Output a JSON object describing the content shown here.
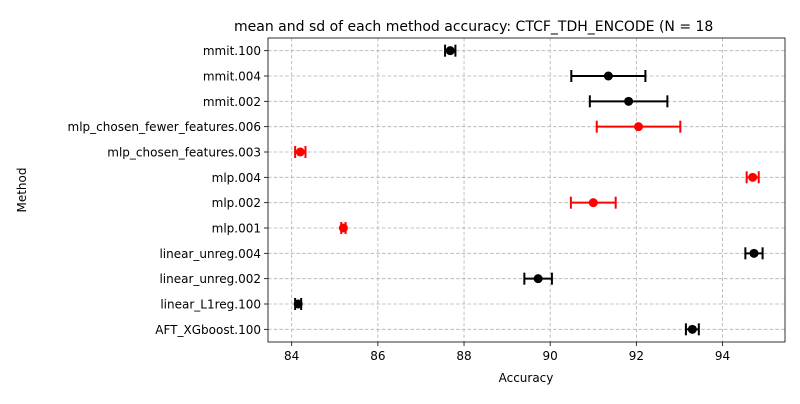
{
  "chart_data": {
    "type": "errorbar",
    "title": "mean and sd of each method accuracy: CTCF_TDH_ENCODE (N = 18",
    "xlabel": "Accuracy",
    "ylabel": "Method",
    "xlim": [
      83.45,
      95.45
    ],
    "xticks": [
      84,
      86,
      88,
      90,
      92,
      94
    ],
    "grid": true,
    "categories": [
      "AFT_XGboost.100",
      "linear_L1reg.100",
      "linear_unreg.002",
      "linear_unreg.004",
      "mlp.001",
      "mlp.002",
      "mlp.004",
      "mlp_chosen_features.003",
      "mlp_chosen_fewer_features.006",
      "mmit.002",
      "mmit.004",
      "mmit.100"
    ],
    "points": [
      {
        "method": "AFT_XGboost.100",
        "mean": 93.3,
        "sd": 0.15,
        "color": "#000000"
      },
      {
        "method": "linear_L1reg.100",
        "mean": 84.15,
        "sd": 0.07,
        "color": "#000000"
      },
      {
        "method": "linear_unreg.002",
        "mean": 89.72,
        "sd": 0.32,
        "color": "#000000"
      },
      {
        "method": "linear_unreg.004",
        "mean": 94.73,
        "sd": 0.2,
        "color": "#000000"
      },
      {
        "method": "mlp.001",
        "mean": 85.2,
        "sd": 0.05,
        "color": "#ff0000"
      },
      {
        "method": "mlp.002",
        "mean": 91.0,
        "sd": 0.52,
        "color": "#ff0000"
      },
      {
        "method": "mlp.004",
        "mean": 94.7,
        "sd": 0.14,
        "color": "#ff0000"
      },
      {
        "method": "mlp_chosen_features.003",
        "mean": 84.2,
        "sd": 0.12,
        "color": "#ff0000"
      },
      {
        "method": "mlp_chosen_fewer_features.006",
        "mean": 92.05,
        "sd": 0.97,
        "color": "#ff0000"
      },
      {
        "method": "mmit.002",
        "mean": 91.82,
        "sd": 0.9,
        "color": "#000000"
      },
      {
        "method": "mmit.004",
        "mean": 91.35,
        "sd": 0.86,
        "color": "#000000"
      },
      {
        "method": "mmit.100",
        "mean": 87.68,
        "sd": 0.12,
        "color": "#000000"
      }
    ]
  }
}
